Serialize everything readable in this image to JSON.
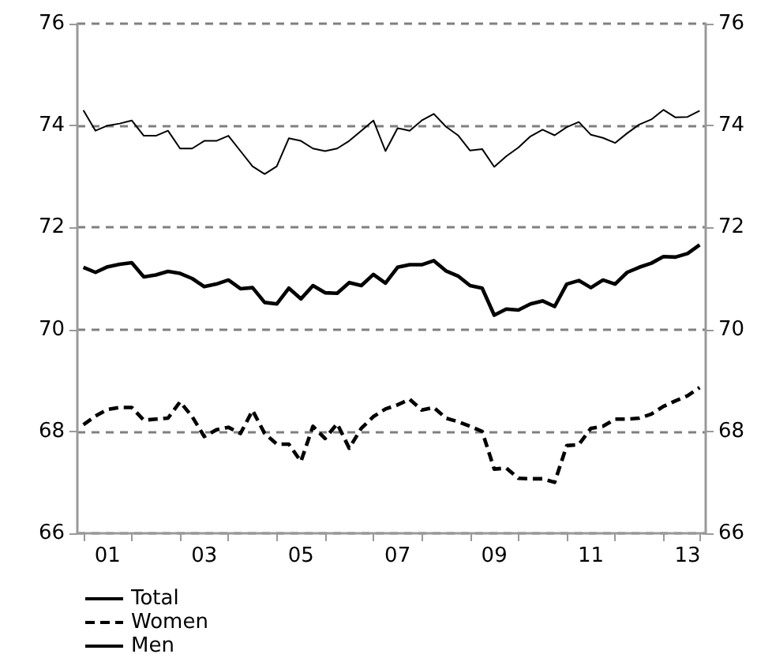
{
  "chart_data": {
    "type": "line",
    "categories": [
      null,
      null,
      "01",
      null,
      null,
      null,
      null,
      null,
      null,
      null,
      "03",
      null,
      null,
      null,
      null,
      null,
      null,
      null,
      "05",
      null,
      null,
      null,
      null,
      null,
      null,
      null,
      "07",
      null,
      null,
      null,
      null,
      null,
      null,
      null,
      "09",
      null,
      null,
      null,
      null,
      null,
      null,
      null,
      "11",
      null,
      null,
      null,
      null,
      null,
      null,
      null,
      "13",
      null
    ],
    "series": [
      {
        "name": "Total",
        "color": "#000000",
        "line_style": "solid",
        "values": [
          71.22,
          71.12,
          71.23,
          71.28,
          71.31,
          71.03,
          71.07,
          71.14,
          71.1,
          71.0,
          70.84,
          70.89,
          70.97,
          70.8,
          70.82,
          70.53,
          70.5,
          70.81,
          70.6,
          70.86,
          70.72,
          70.71,
          70.92,
          70.86,
          71.08,
          70.91,
          71.22,
          71.27,
          71.27,
          71.35,
          71.15,
          71.05,
          70.86,
          70.81,
          70.28,
          70.4,
          70.38,
          70.5,
          70.56,
          70.45,
          70.89,
          70.96,
          70.82,
          70.97,
          70.89,
          71.12,
          71.22,
          71.3,
          71.43,
          71.42,
          71.49,
          71.66
        ]
      },
      {
        "name": "Women",
        "color": "#000000",
        "line_style": "dashed",
        "values": [
          68.13,
          68.3,
          68.43,
          68.47,
          68.47,
          68.22,
          68.24,
          68.26,
          68.58,
          68.29,
          67.9,
          68.03,
          68.08,
          67.96,
          68.41,
          67.96,
          67.75,
          67.75,
          67.41,
          68.1,
          67.86,
          68.15,
          67.67,
          68.06,
          68.29,
          68.44,
          68.52,
          68.63,
          68.42,
          68.47,
          68.26,
          68.19,
          68.1,
          68.0,
          67.26,
          67.28,
          67.08,
          67.07,
          67.07,
          67.0,
          67.72,
          67.74,
          68.06,
          68.1,
          68.24,
          68.24,
          68.26,
          68.34,
          68.49,
          68.6,
          68.7,
          68.86
        ]
      },
      {
        "name": "Men",
        "color": "#000000",
        "line_style": "solid",
        "values": [
          74.3,
          73.9,
          74.0,
          74.04,
          74.1,
          73.8,
          73.8,
          73.9,
          73.55,
          73.55,
          73.7,
          73.7,
          73.8,
          73.5,
          73.2,
          73.05,
          73.2,
          73.75,
          73.7,
          73.55,
          73.5,
          73.55,
          73.7,
          73.9,
          74.1,
          73.5,
          73.95,
          73.9,
          74.1,
          74.23,
          73.98,
          73.81,
          73.51,
          73.54,
          73.19,
          73.4,
          73.57,
          73.79,
          73.92,
          73.81,
          73.97,
          74.07,
          73.82,
          73.76,
          73.66,
          73.85,
          74.02,
          74.12,
          74.31,
          74.16,
          74.17,
          74.29
        ]
      }
    ],
    "ylim": [
      66,
      76
    ],
    "yticks": [
      66,
      68,
      70,
      72,
      74,
      76
    ],
    "y2lim": [
      66,
      76
    ],
    "y2ticks": [
      66,
      68,
      70,
      72,
      74,
      76
    ],
    "grid": "y",
    "legend": "bottom left",
    "marker": "none"
  }
}
